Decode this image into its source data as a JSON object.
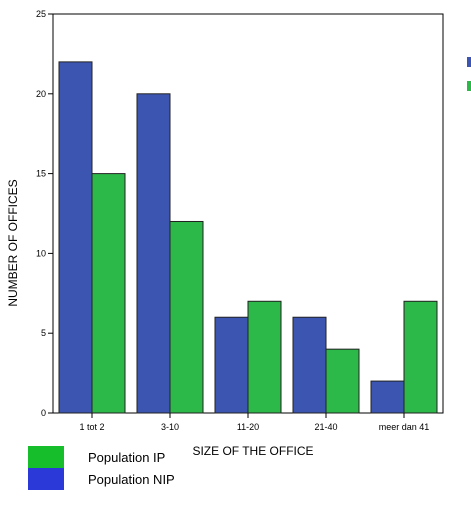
{
  "chart_data": {
    "type": "bar",
    "categories": [
      "1 tot 2",
      "3-10",
      "11-20",
      "21-40",
      "meer dan 41"
    ],
    "series": [
      {
        "name": "Population NIP",
        "values": [
          22,
          20,
          6,
          6,
          2
        ],
        "color": "#3C55B0"
      },
      {
        "name": "Population IP",
        "values": [
          15,
          12,
          7,
          4,
          7
        ],
        "color": "#2DB84A"
      }
    ],
    "title": "",
    "xlabel": "SIZE OF THE OFFICE",
    "ylabel": "NUMBER OF OFFICES",
    "ylim": [
      0,
      25
    ],
    "yticks": [
      0,
      5,
      10,
      15,
      20,
      25
    ],
    "grid": false,
    "legend_position": "bottom-left"
  },
  "legend": {
    "items": [
      {
        "label": "Population IP",
        "color": "#16BE2C"
      },
      {
        "label": "Population NIP",
        "color": "#2A39D8"
      }
    ]
  }
}
